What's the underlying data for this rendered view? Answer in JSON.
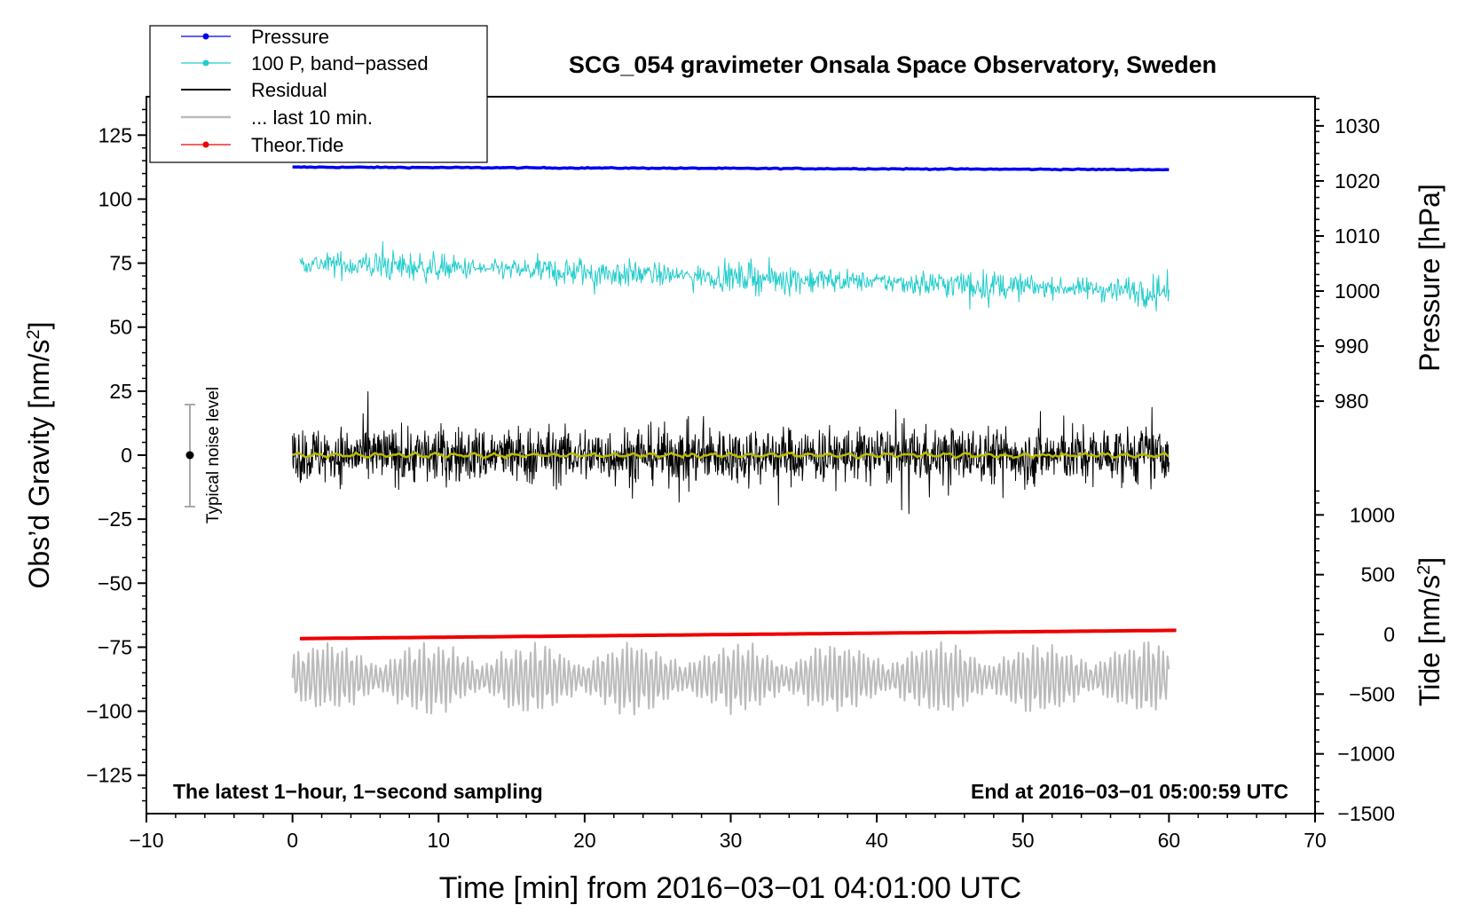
{
  "chart_data": {
    "type": "line",
    "title": "SCG_054 gravimeter Onsala Space Observatory, Sweden",
    "xlabel": "Time [min] from 2016−03−01 04:01:00 UTC",
    "ylabel_left": "Obs’d Gravity [nm/s",
    "ylabel_left_sup": "2",
    "ylabel_left_close": "]",
    "ylabel_right_pressure": "Pressure [hPa]",
    "ylabel_right_tide": "Tide [nm/s",
    "ylabel_right_tide_sup": "2",
    "ylabel_right_tide_close": "]",
    "annotation_left": "The latest 1−hour, 1−second sampling",
    "annotation_right": "End at 2016−03−01 05:00:59 UTC",
    "noise_label": "Typical noise level",
    "noise_bar": {
      "x": -7,
      "center": 0,
      "halfwidth": 20
    },
    "xlim": [
      -10,
      70
    ],
    "ylim_left": [
      -140,
      140
    ],
    "xticks": [
      -10,
      0,
      10,
      20,
      30,
      40,
      50,
      60,
      70
    ],
    "xtick_labels": [
      "−10",
      "0",
      "10",
      "20",
      "30",
      "40",
      "50",
      "60",
      "70"
    ],
    "yticks_left": [
      125,
      100,
      75,
      50,
      25,
      0,
      -25,
      -50,
      -75,
      -100,
      -125
    ],
    "ytick_labels_left": [
      "125",
      "100",
      "75",
      "50",
      "25",
      "0",
      "−25",
      "−50",
      "−75",
      "−100",
      "−125"
    ],
    "pressure_axis": {
      "ticks": [
        1030,
        1020,
        1010,
        1000,
        990,
        980
      ],
      "tick_labels": [
        "1030",
        "1020",
        "1010",
        "1000",
        "990",
        "980"
      ],
      "map": {
        "value_at_y0": 1026,
        "value_at_y1": 1016,
        "y0": 120,
        "y1": 98.5
      }
    },
    "tide_axis": {
      "ticks": [
        1000,
        500,
        0,
        -500,
        -1000,
        -1500
      ],
      "tick_labels": [
        "1000",
        "500",
        "0",
        "−500",
        "−1000",
        "−1500"
      ],
      "map": {
        "value_at_y0": 0,
        "value_at_y1": -1500,
        "y0": -70,
        "y1": -140
      }
    },
    "legend": {
      "placement": "top-left",
      "entries": [
        {
          "label": "Pressure",
          "color": "#0000ee",
          "marker": true
        },
        {
          "label": "100 P, band−passed",
          "color": "#22cccc",
          "marker": true
        },
        {
          "label": "Residual",
          "color": "#000000",
          "marker": false
        },
        {
          "label": "... last 10 min.",
          "color": "#bbbbbb",
          "marker": false
        },
        {
          "label": "Theor.Tide",
          "color": "#ee0000",
          "marker": true
        }
      ]
    },
    "series": [
      {
        "name": "Pressure",
        "color": "#0000ee",
        "x_range": [
          0,
          60
        ],
        "y_start": 112.5,
        "y_end": 111.5,
        "noise": 0.1
      },
      {
        "name": "100 P, band−passed",
        "color": "#22cccc",
        "x_range": [
          0.5,
          60
        ],
        "y_start": 75,
        "y_end": 64,
        "amplitude": 6
      },
      {
        "name": "Residual",
        "color": "#000000",
        "x_range": [
          0,
          60
        ],
        "y_center": 0,
        "amplitude": 12
      },
      {
        "name": "Residual smoothed",
        "color": "#bbbb00",
        "x_range": [
          0,
          60
        ],
        "y_center": 0,
        "amplitude": 1
      },
      {
        "name": "... last 10 min.",
        "color": "#bbbbbb",
        "x_range": [
          0,
          60
        ],
        "y_center": -87,
        "amplitude": 9
      },
      {
        "name": "Theor.Tide",
        "color": "#ee0000",
        "x_range": [
          0.5,
          60.5
        ],
        "tide_start": -35,
        "tide_end": 34
      }
    ],
    "colors": {
      "frame": "#000000",
      "noise_bar": "#aaaaaa"
    }
  }
}
